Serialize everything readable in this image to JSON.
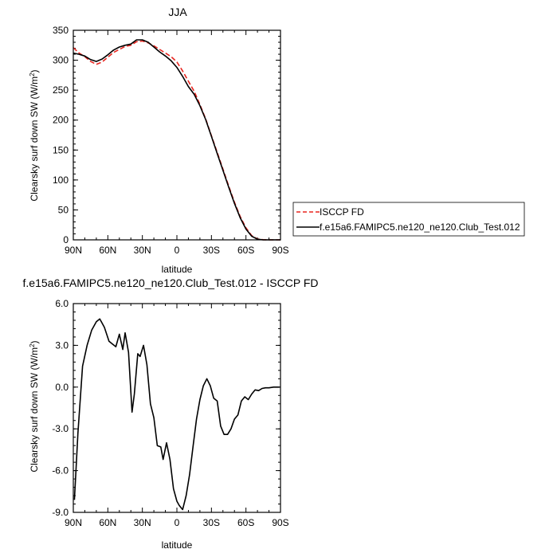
{
  "chart_data": [
    {
      "type": "line",
      "title": "JJA",
      "xlabel": "latitude",
      "ylabel": "Clearsky surf down SW (W/m",
      "ylabel_sup": "2",
      "ylabel_close": ")",
      "xlim": [
        90,
        -90
      ],
      "ylim": [
        0,
        350
      ],
      "xticks": [
        90,
        60,
        30,
        0,
        -30,
        -60,
        -90
      ],
      "xticklabels": [
        "90N",
        "60N",
        "30N",
        "0",
        "30S",
        "60S",
        "90S"
      ],
      "yticks": [
        0,
        50,
        100,
        150,
        200,
        250,
        300,
        350
      ],
      "yticklabels": [
        "0",
        "50",
        "100",
        "150",
        "200",
        "250",
        "300",
        "350"
      ],
      "legend_position": "right",
      "series": [
        {
          "name": "ISCCP FD",
          "color": "#e8251f",
          "dash": "dashed",
          "x": [
            90,
            85,
            80,
            75,
            70,
            65,
            60,
            55,
            50,
            45,
            40,
            35,
            30,
            25,
            20,
            15,
            10,
            5,
            0,
            -5,
            -10,
            -15,
            -20,
            -25,
            -30,
            -35,
            -40,
            -45,
            -50,
            -55,
            -60,
            -65,
            -70,
            -75,
            -80,
            -85,
            -90
          ],
          "y": [
            321,
            312,
            306,
            298,
            293,
            297,
            305,
            313,
            318,
            323,
            325,
            331,
            332,
            329,
            324,
            318,
            312,
            306,
            297,
            282,
            265,
            248,
            226,
            202,
            174,
            146,
            118,
            90,
            63,
            39,
            20,
            7,
            1.5,
            0.2,
            0,
            0,
            0
          ]
        },
        {
          "name": "f.e15a6.FAMIPC5.ne120_ne120.Club_Test.012",
          "color": "#000000",
          "dash": "solid",
          "x": [
            90,
            85,
            80,
            75,
            70,
            65,
            60,
            55,
            50,
            45,
            40,
            35,
            30,
            25,
            20,
            15,
            10,
            5,
            0,
            -5,
            -10,
            -15,
            -20,
            -25,
            -30,
            -35,
            -40,
            -45,
            -50,
            -55,
            -60,
            -65,
            -70,
            -75,
            -80,
            -85,
            -90
          ],
          "y": [
            312,
            310,
            307,
            301,
            298,
            302,
            309,
            317,
            322,
            325,
            327,
            334,
            334,
            330,
            322,
            314,
            307,
            299,
            288,
            273,
            256,
            243,
            224,
            201,
            173,
            144,
            116,
            88,
            61,
            37,
            18,
            6,
            1,
            0,
            0,
            0,
            0
          ]
        }
      ]
    },
    {
      "type": "line",
      "title": "f.e15a6.FAMIPC5.ne120_ne120.Club_Test.012 - ISCCP FD",
      "xlabel": "latitude",
      "ylabel": "Clearsky surf down SW (W/m",
      "ylabel_sup": "2",
      "ylabel_close": ")",
      "xlim": [
        90,
        -90
      ],
      "ylim": [
        -9,
        6
      ],
      "xticks": [
        90,
        60,
        30,
        0,
        -30,
        -60,
        -90
      ],
      "xticklabels": [
        "90N",
        "60N",
        "30N",
        "0",
        "30S",
        "60S",
        "90S"
      ],
      "yticks": [
        -9,
        -6,
        -3,
        0,
        3,
        6
      ],
      "yticklabels": [
        "-9.0",
        "-6.0",
        "-3.0",
        "0.0",
        "3.0",
        "6.0"
      ],
      "series": [
        {
          "color": "#000000",
          "x": [
            89,
            86,
            82,
            78,
            74,
            70,
            67,
            63,
            59,
            56,
            53,
            50,
            47,
            45,
            42,
            39,
            37,
            34,
            32,
            29,
            26,
            23,
            20,
            17,
            14,
            12,
            9,
            6,
            3,
            0,
            -2,
            -5,
            -8,
            -11,
            -14,
            -17,
            -20,
            -23,
            -26,
            -29,
            -32,
            -35,
            -38,
            -41,
            -44,
            -47,
            -50,
            -53,
            -56,
            -59,
            -62,
            -65,
            -68,
            -71,
            -74,
            -77,
            -80,
            -84,
            -87,
            -89
          ],
          "y": [
            -8.1,
            -3.3,
            1.5,
            3.0,
            4.1,
            4.7,
            4.9,
            4.3,
            3.3,
            3.1,
            2.9,
            3.8,
            2.7,
            3.9,
            2.5,
            -1.8,
            -0.5,
            2.4,
            2.2,
            3.0,
            1.6,
            -1.2,
            -2.2,
            -4.2,
            -4.3,
            -5.2,
            -4.0,
            -5.2,
            -7.3,
            -8.2,
            -8.5,
            -8.8,
            -7.8,
            -6.3,
            -4.3,
            -2.3,
            -0.9,
            0.1,
            0.6,
            0.1,
            -0.8,
            -1.0,
            -2.8,
            -3.4,
            -3.4,
            -3.0,
            -2.3,
            -2.0,
            -1.0,
            -0.7,
            -0.9,
            -0.5,
            -0.2,
            -0.25,
            -0.1,
            -0.05,
            -0.05,
            0.0,
            0.0,
            0.0
          ]
        }
      ]
    }
  ]
}
